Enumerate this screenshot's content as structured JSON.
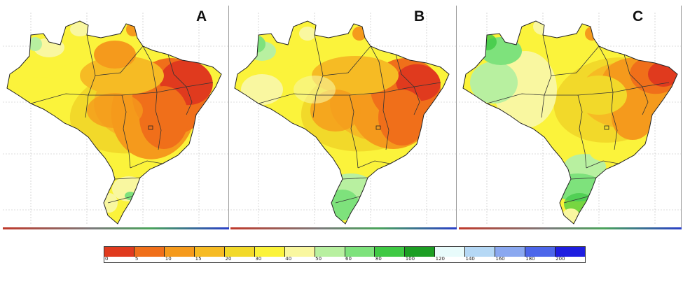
{
  "panels": [
    {
      "label": "A"
    },
    {
      "label": "B"
    },
    {
      "label": "C"
    }
  ],
  "legend": {
    "colors": [
      "#e03a1e",
      "#f06f1a",
      "#f59a1c",
      "#f6bb24",
      "#f2d92a",
      "#fbf33b",
      "#f9f7a0",
      "#b8f0a0",
      "#7ee27c",
      "#3fc944",
      "#1c9e24",
      "#e8fbfb",
      "#b5d8f5",
      "#8aa8f0",
      "#4c66ea",
      "#1e1ee0"
    ],
    "labels": [
      "0",
      "5",
      "10",
      "15",
      "20",
      "30",
      "40",
      "50",
      "60",
      "80",
      "100",
      "120",
      "140",
      "160",
      "180",
      "200"
    ]
  }
}
